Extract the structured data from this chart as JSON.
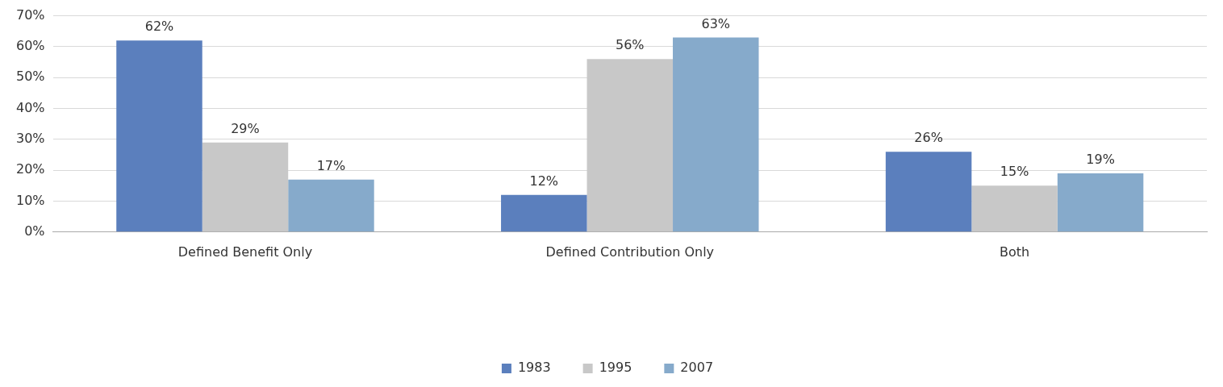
{
  "chart_data": {
    "type": "bar",
    "categories": [
      "Defined Benefit Only",
      "Defined Contribution Only",
      "Both"
    ],
    "series": [
      {
        "name": "1983",
        "color": "#5b7fbd",
        "values": [
          62,
          12,
          26
        ],
        "value_labels": [
          "62%",
          "12%",
          "26%"
        ]
      },
      {
        "name": "1995",
        "color": "#c8c8c8",
        "values": [
          29,
          56,
          15
        ],
        "value_labels": [
          "29%",
          "56%",
          "15%"
        ]
      },
      {
        "name": "2007",
        "color": "#86aacb",
        "values": [
          17,
          63,
          19
        ],
        "value_labels": [
          "17%",
          "63%",
          "19%"
        ]
      }
    ],
    "ylim": [
      0,
      70
    ],
    "yticks": [
      {
        "value": 0,
        "label": "0%"
      },
      {
        "value": 10,
        "label": "10%"
      },
      {
        "value": 20,
        "label": "20%"
      },
      {
        "value": 30,
        "label": "30%"
      },
      {
        "value": 40,
        "label": "40%"
      },
      {
        "value": 50,
        "label": "50%"
      },
      {
        "value": 60,
        "label": "60%"
      },
      {
        "value": 70,
        "label": "70%"
      }
    ],
    "grid": "y",
    "legend": "bottom"
  }
}
